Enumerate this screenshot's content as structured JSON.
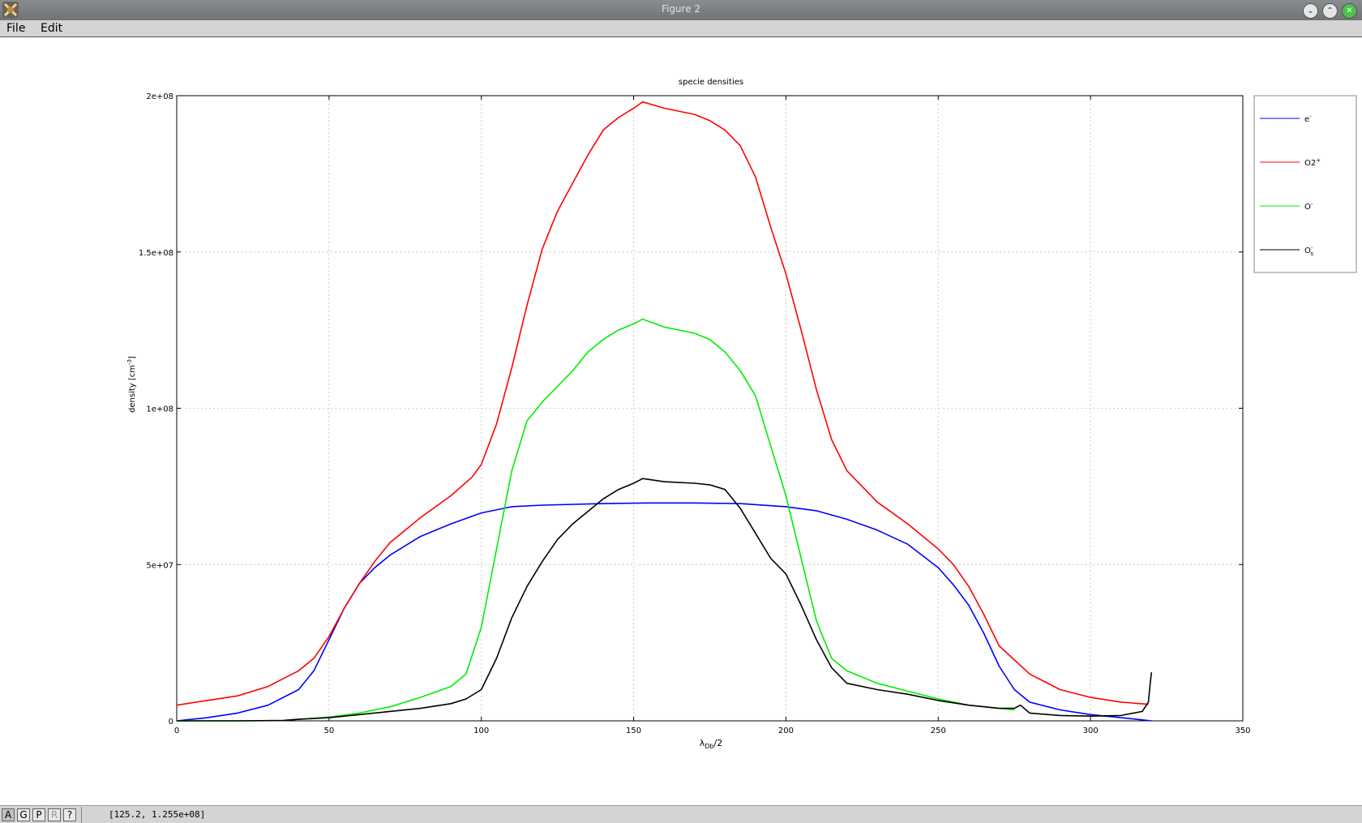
{
  "window": {
    "title": "Figure 2",
    "buttons": {
      "minimize": "⌄",
      "maximize": "⌃",
      "close": "✕"
    }
  },
  "menu": {
    "file": "File",
    "edit": "Edit"
  },
  "status": {
    "buttons": [
      "A",
      "G",
      "P",
      "R",
      "?"
    ],
    "coords": "[125.2, 1.255e+08]"
  },
  "colors": {
    "e": "#0000ff",
    "o2p": "#ff0000",
    "om": "#00ee00",
    "oms": "#000000"
  },
  "chart_data": {
    "type": "line",
    "title": "specie densities",
    "xlabel": "λDb/2",
    "xlabel_parts": {
      "base": "λ",
      "sub": "Db",
      "rest": "/2"
    },
    "ylabel": "density [cm-3]",
    "ylabel_parts": {
      "base": "density [cm",
      "sup": "-3",
      "rest": "]"
    },
    "xlim": [
      0,
      350
    ],
    "ylim": [
      0,
      200000000
    ],
    "xticks": [
      0,
      50,
      100,
      150,
      200,
      250,
      300,
      350
    ],
    "yticks": [
      0,
      50000000,
      100000000,
      150000000,
      200000000
    ],
    "ytick_labels": [
      "0",
      "5e+07",
      "1e+08",
      "1.5e+08",
      "2e+08"
    ],
    "grid": true,
    "legend_position": "outside-right-top",
    "series": [
      {
        "name": "e-",
        "label_base": "e",
        "label_sup": "-",
        "label_sub": "",
        "color": "#0000ff",
        "x": [
          0,
          10,
          20,
          30,
          40,
          45,
          50,
          55,
          60,
          65,
          70,
          80,
          90,
          100,
          110,
          120,
          140,
          155,
          170,
          185,
          200,
          210,
          220,
          230,
          240,
          250,
          255,
          260,
          265,
          270,
          275,
          280,
          290,
          300,
          310,
          320
        ],
        "y": [
          0,
          1000000,
          2500000,
          5000000,
          10000000,
          16000000,
          26000000,
          36000000,
          44000000,
          49000000,
          53000000,
          59000000,
          63000000,
          66500000,
          68500000,
          69000000,
          69500000,
          69700000,
          69700000,
          69500000,
          68500000,
          67200000,
          64500000,
          61000000,
          56500000,
          49000000,
          43500000,
          37000000,
          28000000,
          17500000,
          10000000,
          6000000,
          3500000,
          2000000,
          1000000,
          0
        ]
      },
      {
        "name": "O2+",
        "label_base": "O2",
        "label_sup": "+",
        "label_sub": "",
        "color": "#ff0000",
        "x": [
          0,
          10,
          20,
          30,
          40,
          45,
          50,
          55,
          60,
          65,
          70,
          80,
          90,
          97,
          100,
          105,
          110,
          115,
          120,
          125,
          130,
          135,
          140,
          145,
          150,
          153,
          160,
          170,
          175,
          180,
          185,
          190,
          195,
          200,
          205,
          210,
          215,
          220,
          230,
          240,
          250,
          255,
          260,
          265,
          270,
          280,
          290,
          300,
          310,
          319
        ],
        "y": [
          5000000,
          6500000,
          8000000,
          11000000,
          16000000,
          20000000,
          27000000,
          36000000,
          44000000,
          51000000,
          57000000,
          65000000,
          72000000,
          78000000,
          82000000,
          95000000,
          113000000,
          133000000,
          151000000,
          163000000,
          172000000,
          181000000,
          189000000,
          193000000,
          196000000,
          198000000,
          196000000,
          194000000,
          192000000,
          189000000,
          184000000,
          174000000,
          158000000,
          143000000,
          125000000,
          106000000,
          90000000,
          80000000,
          70000000,
          63000000,
          55000000,
          50000000,
          43000000,
          34000000,
          24000000,
          15000000,
          10000000,
          7500000,
          6000000,
          5300000
        ]
      },
      {
        "name": "O-",
        "label_base": "O",
        "label_sup": "-",
        "label_sub": "",
        "color": "#00ee00",
        "x": [
          0,
          20,
          35,
          40,
          50,
          60,
          70,
          80,
          90,
          95,
          100,
          105,
          110,
          115,
          120,
          125,
          130,
          135,
          140,
          145,
          150,
          153,
          160,
          170,
          175,
          180,
          185,
          190,
          195,
          200,
          205,
          210,
          215,
          220,
          230,
          240,
          250,
          260,
          270,
          275
        ],
        "y": [
          0,
          0,
          100000,
          500000,
          1200000,
          2500000,
          4500000,
          7500000,
          11000000,
          15000000,
          30000000,
          55000000,
          80000000,
          96000000,
          102000000,
          107000000,
          112000000,
          118000000,
          122000000,
          125000000,
          127000000,
          128500000,
          126000000,
          124000000,
          122000000,
          118000000,
          112000000,
          104000000,
          88000000,
          72000000,
          52000000,
          32000000,
          20000000,
          16000000,
          12000000,
          9500000,
          7000000,
          5000000,
          4000000,
          3500000
        ]
      },
      {
        "name": "O-s",
        "label_base": "O",
        "label_sup": "-",
        "label_sub": "s",
        "color": "#000000",
        "x": [
          0,
          20,
          35,
          40,
          50,
          60,
          70,
          80,
          90,
          95,
          100,
          105,
          110,
          115,
          120,
          125,
          130,
          135,
          140,
          145,
          150,
          153,
          160,
          170,
          175,
          180,
          185,
          190,
          195,
          200,
          205,
          210,
          215,
          220,
          230,
          240,
          250,
          260,
          270,
          275,
          277,
          280,
          290,
          300,
          310,
          317,
          319,
          319.5,
          320
        ],
        "y": [
          0,
          0,
          100000,
          500000,
          1000000,
          2000000,
          3000000,
          4000000,
          5500000,
          7000000,
          10000000,
          20000000,
          33000000,
          43000000,
          51000000,
          58000000,
          63000000,
          67000000,
          71000000,
          74000000,
          76000000,
          77500000,
          76500000,
          76000000,
          75500000,
          74000000,
          68000000,
          60000000,
          52000000,
          47000000,
          37000000,
          26000000,
          17000000,
          12000000,
          10000000,
          8500000,
          6500000,
          5000000,
          4000000,
          4000000,
          5000000,
          2500000,
          1700000,
          1500000,
          1700000,
          3000000,
          6000000,
          11000000,
          15500000
        ]
      }
    ]
  }
}
